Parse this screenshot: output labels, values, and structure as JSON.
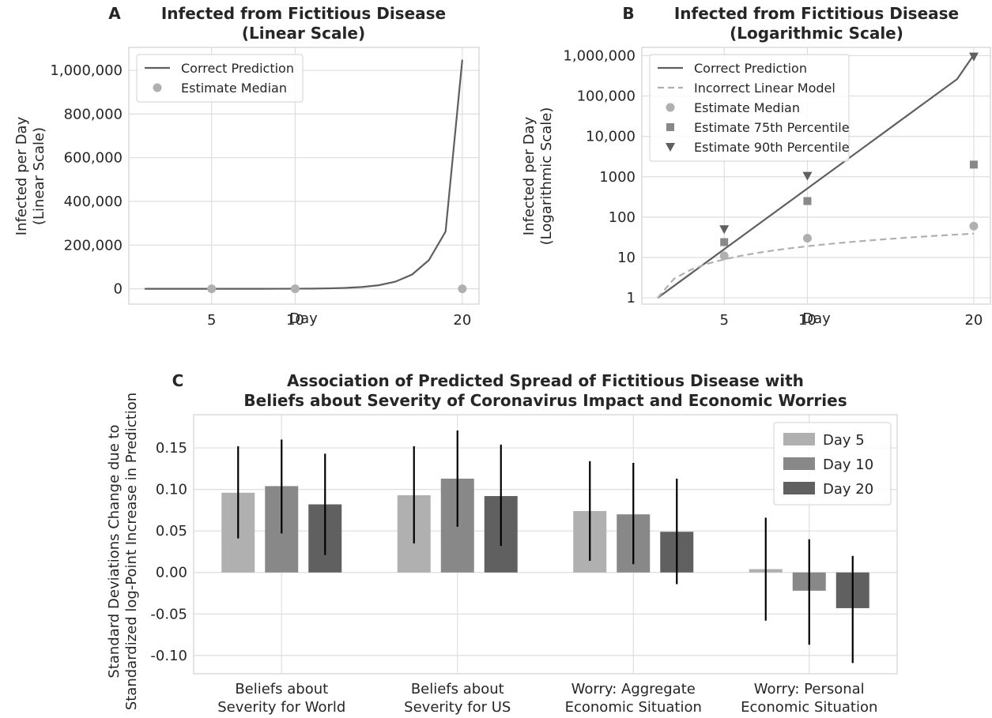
{
  "colors": {
    "line_dark": "#5f5f5f",
    "line_light": "#b0b0b0",
    "marker_light": "#b0b0b0",
    "marker_mid": "#888888",
    "marker_dark": "#5f5f5f",
    "bar_day5": "#b0b0b0",
    "bar_day10": "#888888",
    "bar_day20": "#606060",
    "error_bar": "#000000"
  },
  "chart_data": [
    {
      "panel_label": "A",
      "type": "line",
      "title": "Infected from Fictitious Disease",
      "subtitle": "(Linear Scale)",
      "xlabel": "Day",
      "ylabel": [
        "Infected per Day",
        "(Linear Scale)"
      ],
      "xlim": [
        0.05,
        21
      ],
      "ylim": [
        -70000,
        1105000
      ],
      "x_ticks": [
        5,
        10,
        20
      ],
      "y_ticks": [
        0,
        200000,
        400000,
        600000,
        800000,
        1000000
      ],
      "y_tick_labels": [
        "0",
        "200,000",
        "400,000",
        "600,000",
        "800,000",
        "1,000,000"
      ],
      "grid": true,
      "legend_position": "top-left",
      "series": [
        {
          "name": "Correct Prediction",
          "kind": "line",
          "x": [
            1,
            2,
            3,
            4,
            5,
            6,
            7,
            8,
            9,
            10,
            11,
            12,
            13,
            14,
            15,
            16,
            17,
            18,
            19,
            20
          ],
          "y": [
            1,
            2,
            4,
            8,
            16,
            32,
            64,
            128,
            256,
            512,
            1024,
            2048,
            4096,
            8192,
            16384,
            32768,
            65536,
            131072,
            262144,
            1048576
          ]
        },
        {
          "name": "Estimate Median",
          "kind": "scatter",
          "marker": "circle",
          "x": [
            5,
            10,
            20
          ],
          "y": [
            11,
            30,
            60
          ]
        }
      ]
    },
    {
      "panel_label": "B",
      "type": "line",
      "title": "Infected from Fictitious Disease",
      "subtitle": "(Logarithmic Scale)",
      "xlabel": "Day",
      "ylabel": [
        "Infected per Day",
        "(Logarithmic Scale)"
      ],
      "y_scale": "log",
      "xlim": [
        0.05,
        21
      ],
      "ylim": [
        0.7,
        1600000
      ],
      "x_ticks": [
        5,
        10,
        20
      ],
      "y_ticks": [
        1,
        10,
        100,
        1000,
        10000,
        100000,
        1000000
      ],
      "y_tick_labels": [
        "1",
        "10",
        "100",
        "1000",
        "10,000",
        "100,000",
        "1,000,000"
      ],
      "grid": true,
      "legend_position": "top-left",
      "series": [
        {
          "name": "Correct Prediction",
          "kind": "line",
          "x": [
            1,
            2,
            3,
            4,
            5,
            6,
            7,
            8,
            9,
            10,
            11,
            12,
            13,
            14,
            15,
            16,
            17,
            18,
            19,
            20
          ],
          "y": [
            1,
            2,
            4,
            8,
            16,
            32,
            64,
            128,
            256,
            512,
            1024,
            2048,
            4096,
            8192,
            16384,
            32768,
            65536,
            131072,
            262144,
            1048576
          ]
        },
        {
          "name": "Incorrect Linear Model",
          "kind": "dashed-line",
          "x": [
            1,
            2,
            3,
            4,
            5,
            6,
            7,
            8,
            9,
            10,
            11,
            12,
            13,
            14,
            15,
            16,
            17,
            18,
            19,
            20
          ],
          "y": [
            1,
            2,
            3,
            4,
            5,
            6,
            7,
            8,
            9,
            10,
            11,
            12,
            13,
            14,
            15,
            16,
            17,
            18,
            19,
            20
          ],
          "display_y": [
            1,
            3,
            5,
            7,
            9,
            11,
            13,
            15,
            17,
            19,
            21,
            23,
            25,
            27,
            29,
            31,
            33,
            35,
            37,
            39
          ]
        },
        {
          "name": "Estimate Median",
          "kind": "scatter",
          "marker": "circle",
          "x": [
            5,
            10,
            20
          ],
          "y": [
            11,
            30,
            60
          ]
        },
        {
          "name": "Estimate 75th Percentile",
          "kind": "scatter",
          "marker": "square",
          "x": [
            5,
            10,
            20
          ],
          "y": [
            24,
            250,
            2000
          ]
        },
        {
          "name": "Estimate 90th Percentile",
          "kind": "scatter",
          "marker": "triangle-down",
          "x": [
            5,
            10,
            20
          ],
          "y": [
            50,
            1050,
            950000
          ]
        }
      ]
    },
    {
      "panel_label": "C",
      "type": "bar",
      "title": "Association of Predicted Spread of Fictitious Disease with",
      "subtitle": "Beliefs about Severity of Coronavirus Impact and Economic Worries",
      "xlabel": "",
      "ylabel": [
        "Standard Deviations Change due to",
        "Standardized log-Point Increase in Prediction"
      ],
      "ylim": [
        -0.122,
        0.19
      ],
      "y_ticks": [
        -0.1,
        -0.05,
        0.0,
        0.05,
        0.1,
        0.15
      ],
      "y_tick_labels": [
        "-0.10",
        "-0.05",
        "0.00",
        "0.05",
        "0.10",
        "0.15"
      ],
      "grid": true,
      "legend_position": "top-right",
      "categories": [
        [
          "Beliefs about",
          "Severity for World"
        ],
        [
          "Beliefs about",
          "Severity for US"
        ],
        [
          "Worry: Aggregate",
          "Economic Situation"
        ],
        [
          "Worry: Personal",
          "Economic Situation"
        ]
      ],
      "series": [
        {
          "name": "Day 5",
          "values": [
            0.096,
            0.093,
            0.074,
            0.004
          ],
          "ci_low": [
            0.041,
            0.035,
            0.014,
            -0.058
          ],
          "ci_high": [
            0.152,
            0.152,
            0.134,
            0.066
          ]
        },
        {
          "name": "Day 10",
          "values": [
            0.104,
            0.113,
            0.07,
            -0.022
          ],
          "ci_low": [
            0.047,
            0.055,
            0.01,
            -0.087
          ],
          "ci_high": [
            0.16,
            0.171,
            0.132,
            0.04
          ]
        },
        {
          "name": "Day 20",
          "values": [
            0.082,
            0.092,
            0.049,
            -0.043
          ],
          "ci_low": [
            0.021,
            0.032,
            -0.014,
            -0.109
          ],
          "ci_high": [
            0.143,
            0.154,
            0.113,
            0.02
          ]
        }
      ]
    }
  ]
}
